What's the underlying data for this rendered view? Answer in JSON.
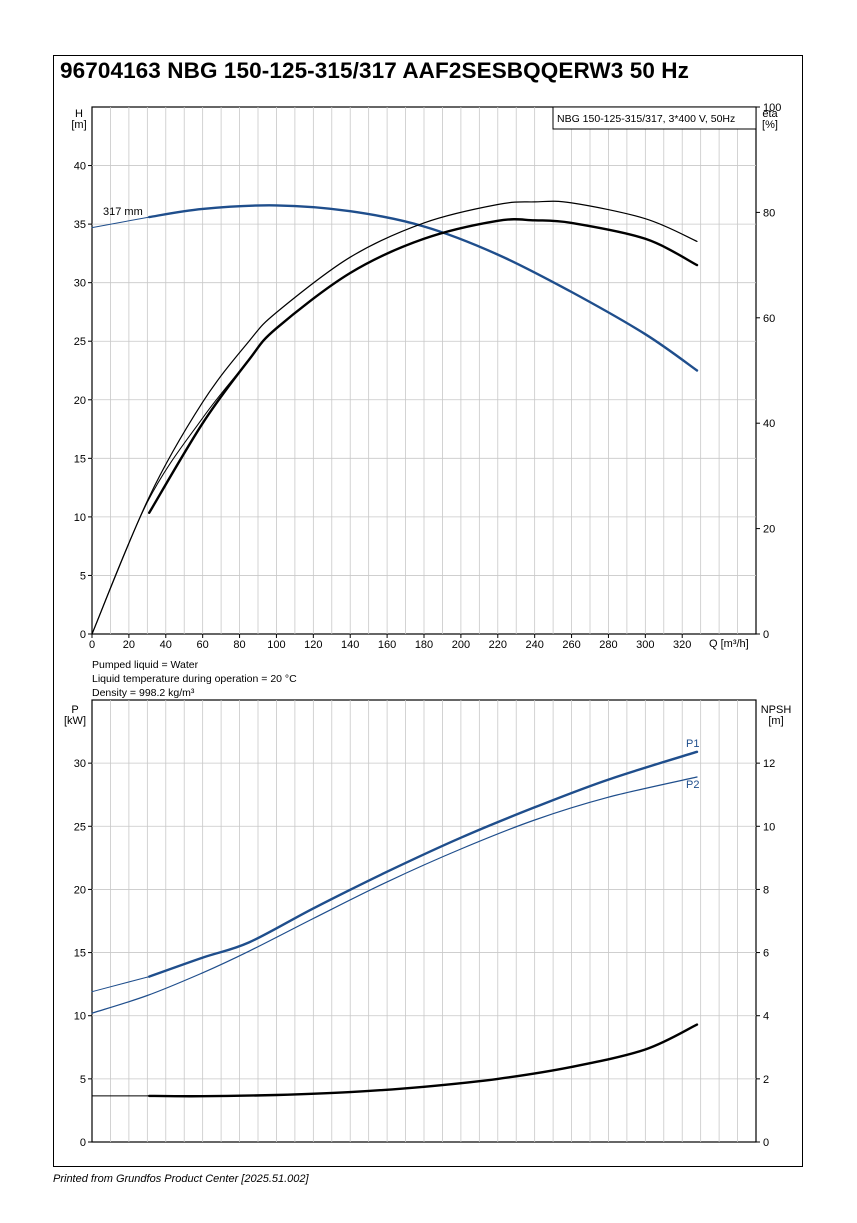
{
  "title": "96704163 NBG 150-125-315/317 AAF2SESBQQERW3 50 Hz",
  "footer": "Printed from Grundfos Product Center [2025.51.002]",
  "colors": {
    "blue": "#1f4e8c",
    "black": "#000000",
    "grid": "#c8c8c8"
  },
  "info_lines": [
    "Pumped liquid = Water",
    "Liquid temperature during operation = 20 °C",
    "Density = 998.2 kg/m³"
  ],
  "chart_data": [
    {
      "type": "line",
      "legend_box": "NBG 150-125-315/317, 3*400 V, 50Hz",
      "legend_position": "top-right",
      "xlabel": "Q [m³/h]",
      "x_ticks": [
        "0",
        "20",
        "40",
        "60",
        "80",
        "100",
        "120",
        "140",
        "160",
        "180",
        "200",
        "220",
        "240",
        "260",
        "280",
        "300",
        "320"
      ],
      "xlim": [
        0,
        360
      ],
      "grid": true,
      "left_axis": {
        "label_top": "H",
        "label_unit": "[m]",
        "range": [
          0,
          45
        ],
        "ticks": [
          "0",
          "5",
          "10",
          "15",
          "20",
          "25",
          "30",
          "35",
          "40"
        ]
      },
      "right_axis": {
        "label_top": "eta",
        "label_unit": "[%]",
        "range": [
          0,
          100
        ],
        "ticks": [
          "0",
          "20",
          "40",
          "60",
          "80",
          "100"
        ]
      },
      "annotation": "317 mm",
      "series": [
        {
          "axis": "left",
          "color": "#1f4e8c",
          "width": 1,
          "x": [
            0,
            31
          ],
          "y": [
            34.7,
            35.6
          ]
        },
        {
          "axis": "left",
          "color": "#1f4e8c",
          "width": 2.4,
          "x": [
            31,
            60,
            100,
            140,
            180,
            220,
            260,
            300,
            328
          ],
          "y": [
            35.6,
            36.3,
            36.6,
            36.1,
            34.8,
            32.4,
            29.2,
            25.6,
            22.5
          ]
        },
        {
          "axis": "right",
          "color": "#000000",
          "width": 1.2,
          "x": [
            0,
            31,
            60,
            85,
            100,
            140,
            180,
            220,
            240,
            260,
            300,
            328
          ],
          "y": [
            0,
            26,
            44,
            55.5,
            61,
            71.5,
            78,
            81.5,
            82,
            81.8,
            78.8,
            74.5
          ]
        },
        {
          "axis": "right",
          "color": "#000000",
          "width": 1,
          "x": [
            0,
            30,
            60,
            85
          ],
          "y": [
            0,
            25,
            41,
            52
          ]
        },
        {
          "axis": "right",
          "color": "#000000",
          "width": 2.4,
          "x": [
            31,
            60,
            85,
            100,
            140,
            180,
            220,
            240,
            260,
            300,
            328
          ],
          "y": [
            23,
            40,
            52,
            58,
            68.5,
            75,
            78.4,
            78.5,
            78,
            75,
            70
          ]
        }
      ]
    },
    {
      "type": "line",
      "xlim": [
        0,
        360
      ],
      "grid": true,
      "left_axis": {
        "label_top": "P",
        "label_unit": "[kW]",
        "range": [
          0,
          35
        ],
        "ticks": [
          "0",
          "5",
          "10",
          "15",
          "20",
          "25",
          "30"
        ]
      },
      "right_axis": {
        "label_top": "NPSH",
        "label_unit": "[m]",
        "range": [
          0,
          14
        ],
        "ticks": [
          "0",
          "2",
          "4",
          "6",
          "8",
          "10",
          "12"
        ]
      },
      "series": [
        {
          "name": "P1",
          "axis": "left",
          "color": "#1f4e8c",
          "width": 1,
          "x": [
            0,
            31
          ],
          "y": [
            11.9,
            13.1
          ]
        },
        {
          "name": "P1",
          "axis": "left",
          "color": "#1f4e8c",
          "width": 2.4,
          "x": [
            31,
            60,
            85,
            120,
            160,
            200,
            240,
            280,
            328
          ],
          "y": [
            13.1,
            14.6,
            15.8,
            18.5,
            21.4,
            24.1,
            26.5,
            28.7,
            30.9
          ]
        },
        {
          "name": "P2",
          "axis": "left",
          "color": "#1f4e8c",
          "width": 1.2,
          "x": [
            0,
            30,
            60,
            85,
            120,
            160,
            200,
            240,
            280,
            328
          ],
          "y": [
            10.2,
            11.6,
            13.4,
            15.1,
            17.7,
            20.6,
            23.2,
            25.5,
            27.3,
            28.9
          ]
        },
        {
          "axis": "right",
          "color": "#000000",
          "width": 1,
          "x": [
            0,
            31
          ],
          "y": [
            1.46,
            1.46
          ]
        },
        {
          "axis": "right",
          "color": "#000000",
          "width": 2.4,
          "x": [
            31,
            60,
            100,
            140,
            180,
            220,
            260,
            300,
            328
          ],
          "y": [
            1.46,
            1.45,
            1.49,
            1.58,
            1.75,
            2.0,
            2.38,
            2.93,
            3.72
          ]
        }
      ],
      "series_labels": [
        "P1",
        "P2"
      ]
    }
  ]
}
